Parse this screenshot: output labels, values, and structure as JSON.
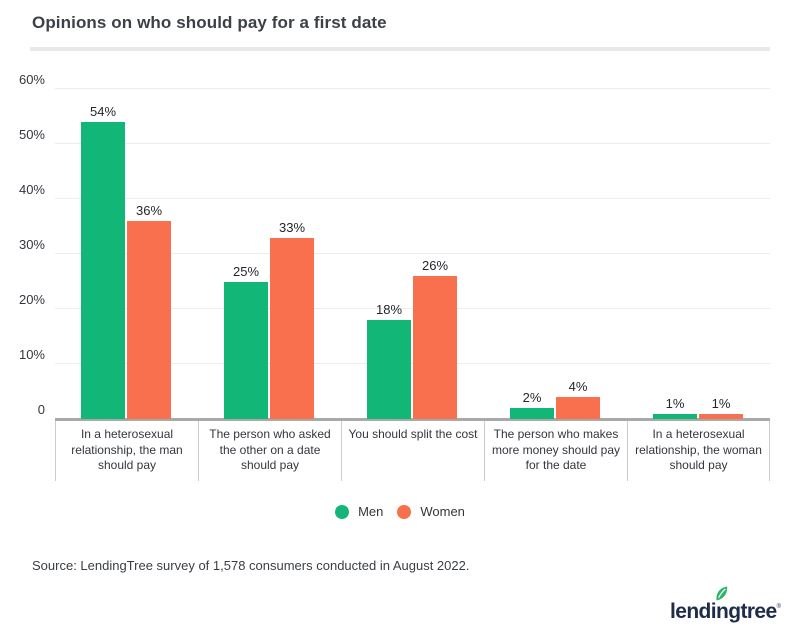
{
  "title": "Opinions on who should pay for a first date",
  "source": "Source: LendingTree survey of 1,578 consumers conducted in August 2022.",
  "logo": {
    "text": "lendingtree",
    "mark": "®"
  },
  "colors": {
    "men": "#12b777",
    "women": "#f9704f",
    "axis": "#a9a9a9",
    "gridline": "#ededed",
    "logo_navy": "#1e2b49",
    "leaf_green": "#2cb56d"
  },
  "chart_data": {
    "type": "bar",
    "title": "Opinions on who should pay for a first date",
    "categories": [
      "In a heterosexual relationship, the man should pay",
      "The person who asked the other on a date should pay",
      "You should split the cost",
      "The person who makes more money should pay for the date",
      "In a heterosexual relationship, the woman should pay"
    ],
    "series": [
      {
        "name": "Men",
        "color": "#12b777",
        "values": [
          54,
          25,
          18,
          2,
          1
        ]
      },
      {
        "name": "Women",
        "color": "#f9704f",
        "values": [
          36,
          33,
          26,
          4,
          1
        ]
      }
    ],
    "value_suffix": "%",
    "xlabel": "",
    "ylabel": "",
    "ylim": [
      0,
      60
    ],
    "yticks": [
      {
        "value": 60,
        "label": "60%"
      },
      {
        "value": 50,
        "label": "50%"
      },
      {
        "value": 40,
        "label": "40%"
      },
      {
        "value": 30,
        "label": "30%"
      },
      {
        "value": 20,
        "label": "20%"
      },
      {
        "value": 10,
        "label": "10%"
      },
      {
        "value": 0,
        "label": "0"
      }
    ],
    "grid": true,
    "legend_position": "bottom"
  }
}
